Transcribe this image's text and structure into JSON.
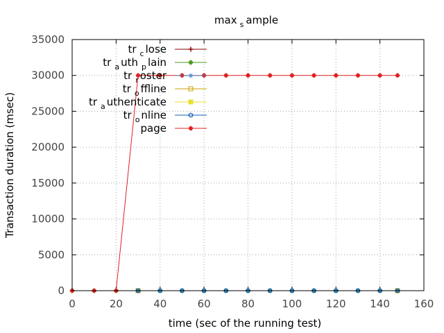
{
  "chart_data": {
    "type": "line",
    "title": {
      "main": "max",
      "sub": "s",
      "rest": "ample"
    },
    "xlabel": "time (sec of the running test)",
    "ylabel": "Transaction duration (msec)",
    "xlim": [
      0,
      160
    ],
    "ylim": [
      0,
      35000
    ],
    "x_ticks": [
      0,
      20,
      40,
      60,
      80,
      100,
      120,
      140,
      160
    ],
    "y_ticks": [
      0,
      5000,
      10000,
      15000,
      20000,
      25000,
      30000,
      35000
    ],
    "grid": true,
    "legend_position": "top-left",
    "series": [
      {
        "name": {
          "main": "tr",
          "sub": "c",
          "rest": "lose"
        },
        "color": "#8b0000",
        "marker": "plus",
        "x": [
          0,
          10,
          20,
          30
        ],
        "y": [
          0,
          0,
          0,
          0
        ]
      },
      {
        "name": {
          "main": "tr",
          "sub": "a",
          "rest": "uth",
          "sub2": "p",
          "rest2": "lain"
        },
        "color": "#4a9a1e",
        "marker": "star",
        "x": [
          0,
          10,
          20,
          30,
          40,
          50,
          60,
          70,
          80,
          90,
          100,
          110,
          120,
          130,
          140,
          148
        ],
        "y": [
          0,
          0,
          0,
          0,
          0,
          0,
          0,
          0,
          0,
          0,
          0,
          0,
          0,
          0,
          0,
          0
        ]
      },
      {
        "name": {
          "main": "tr",
          "sub": "r",
          "rest": "oster"
        },
        "color": "#4a8bc8",
        "marker": "asterisk",
        "x": [
          30,
          40,
          50,
          60,
          70,
          80,
          90,
          100,
          110,
          120,
          130,
          140,
          148
        ],
        "y": [
          0,
          0,
          0,
          0,
          0,
          0,
          0,
          0,
          0,
          0,
          0,
          0,
          0
        ]
      },
      {
        "name": {
          "main": "tr",
          "sub": "o",
          "rest": "ffline"
        },
        "color": "#c8a000",
        "marker": "open-square",
        "x": [
          30,
          148
        ],
        "y": [
          0,
          0
        ]
      },
      {
        "name": {
          "main": "tr",
          "sub": "a",
          "rest": "uthenticate"
        },
        "color": "#e8e030",
        "marker": "filled-square",
        "x": [],
        "y": []
      },
      {
        "name": {
          "main": "tr",
          "sub": "o",
          "rest": "nline"
        },
        "color": "#1060b0",
        "marker": "open-circle",
        "x": [
          30,
          40,
          50,
          60,
          70,
          80,
          90,
          100,
          110,
          120,
          130,
          140,
          148
        ],
        "y": [
          0,
          0,
          0,
          0,
          0,
          0,
          0,
          0,
          0,
          0,
          0,
          0,
          0
        ]
      },
      {
        "name": {
          "main": "page",
          "sub": "",
          "rest": ""
        },
        "color": "#e02020",
        "marker": "filled-circle",
        "x": [
          0,
          10,
          20,
          30,
          40,
          50,
          60,
          70,
          80,
          90,
          100,
          110,
          120,
          130,
          140,
          148
        ],
        "y": [
          0,
          0,
          0,
          30000,
          30000,
          30000,
          30000,
          30000,
          30000,
          30000,
          30000,
          30000,
          30000,
          30000,
          30000,
          30000
        ]
      }
    ]
  }
}
